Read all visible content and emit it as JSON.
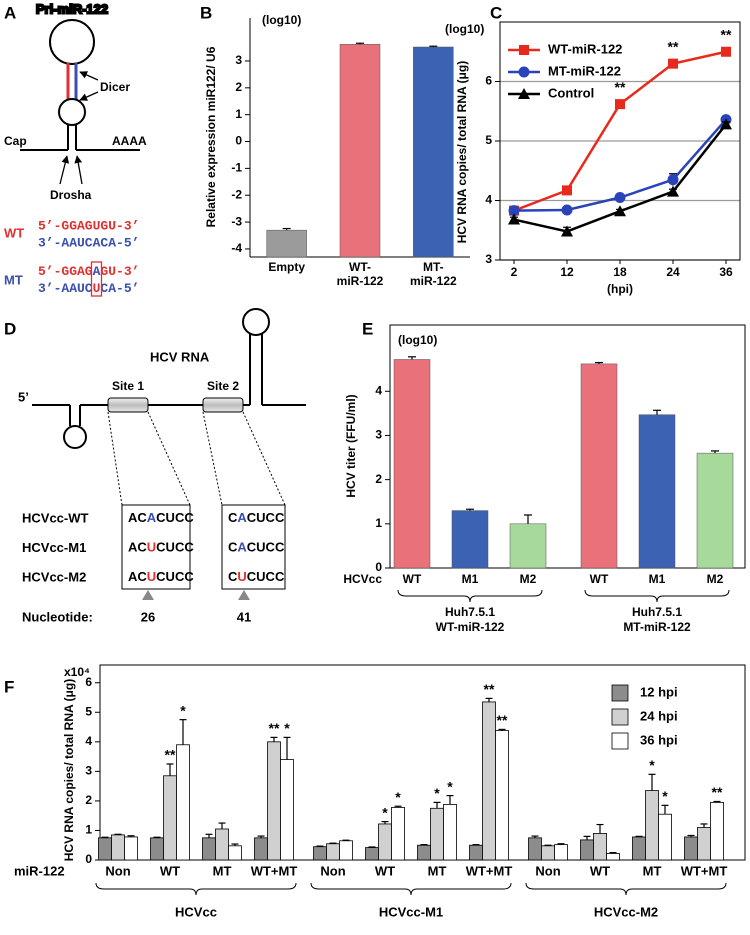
{
  "panel_labels": [
    "A",
    "B",
    "C",
    "D",
    "E",
    "F"
  ],
  "diagram_a": {
    "title": "Pri-miR-122",
    "dicer": "Dicer",
    "drosha": "Drosha",
    "cap": "Cap",
    "poly_a": "AAAA",
    "wt": {
      "label": "WT",
      "top": "5’-GGAGUGU-3’",
      "bottom": "3’-AAUCACA-5’"
    },
    "mt": {
      "label": "MT",
      "top": [
        "5’-GGAG",
        "A",
        "GU-3’"
      ],
      "bottom": [
        "3’-AAUC",
        "U",
        "CA-5’"
      ]
    }
  },
  "diagram_d": {
    "rna": "HCV RNA",
    "five_prime": "5’",
    "site1": "Site 1",
    "site2": "Site 2",
    "rows": [
      {
        "name": "HCVcc-WT",
        "site1": [
          "AC",
          "A",
          "CUCC"
        ],
        "site2": [
          "C",
          "A",
          "CUCC"
        ]
      },
      {
        "name": "HCVcc-M1",
        "site1": [
          "AC",
          "U",
          "CUCC"
        ],
        "site2": [
          "C",
          "A",
          "CUCC"
        ]
      },
      {
        "name": "HCVcc-M2",
        "site1": [
          "AC",
          "U",
          "CUCC"
        ],
        "site2": [
          "C",
          "U",
          "CUCC"
        ]
      }
    ],
    "nucleotide_label": "Nucleotide:",
    "positions": [
      26,
      41
    ]
  },
  "chart_data": [
    {
      "type": "bar",
      "y_label": "Relative expression miR122/ U6",
      "y_unit": "(log10)",
      "categories": [
        [
          "Empty"
        ],
        [
          "WT-",
          "miR-122"
        ],
        [
          "MT-",
          "miR-122"
        ]
      ],
      "values": [
        -3.3,
        3.62,
        3.52
      ],
      "errors": [
        0.06,
        0.04,
        0.03
      ],
      "colors": [
        "#9b9b9b",
        "#e9717a",
        "#3b62b3"
      ],
      "ylim": [
        -4.3,
        4.6
      ],
      "yticks": [
        3,
        2,
        1,
        0,
        -1,
        -2,
        -3,
        -4
      ]
    },
    {
      "type": "line",
      "y_label": "HCV RNA copies/ total RNA (μg)",
      "y_unit": "(log10)",
      "x_label": "(hpi)",
      "categories": [
        2,
        12,
        18,
        24,
        36
      ],
      "series": [
        {
          "name": "WT-miR-122",
          "color": "#e8291c",
          "marker": "square",
          "values": [
            3.83,
            4.17,
            5.62,
            6.3,
            6.5
          ],
          "errors": [
            0.03,
            0.03,
            0.03,
            0.03,
            0.03
          ]
        },
        {
          "name": "MT-miR-122",
          "color": "#2b43b8",
          "marker": "circle",
          "values": [
            3.83,
            3.84,
            4.05,
            4.35,
            5.36
          ],
          "errors": [
            0.03,
            0.02,
            0.03,
            0.1,
            0.03
          ]
        },
        {
          "name": "Control",
          "color": "#000000",
          "marker": "triangle",
          "values": [
            3.68,
            3.48,
            3.82,
            4.15,
            5.28
          ],
          "errors": [
            0.04,
            0.07,
            0.03,
            0.04,
            0.04
          ]
        }
      ],
      "annotations": [
        null,
        null,
        "**",
        "**",
        "**"
      ],
      "ylim": [
        3,
        7
      ],
      "yticks": [
        3,
        4,
        5,
        6
      ],
      "grid": true,
      "legend": "upper-left"
    },
    {
      "type": "bar",
      "y_label": "HCV titer (FFU/ml)",
      "y_unit": "(log10)",
      "x_prefix": "HCVcc",
      "categories": [
        "WT",
        "M1",
        "M2",
        "WT",
        "M1",
        "M2"
      ],
      "groups": [
        [
          "Huh7.5.1",
          "WT-miR-122"
        ],
        [
          "Huh7.5.1",
          "MT-miR-122"
        ]
      ],
      "values": [
        4.72,
        1.3,
        1.0,
        4.62,
        3.47,
        2.6
      ],
      "errors": [
        0.06,
        0.03,
        0.2,
        0.03,
        0.1,
        0.05
      ],
      "colors": [
        "#e9717a",
        "#3b62b3",
        "#a6d99a",
        "#e9717a",
        "#3b62b3",
        "#a6d99a"
      ],
      "ylim": [
        0,
        5.5
      ],
      "yticks": [
        0,
        1,
        2,
        3,
        4
      ]
    },
    {
      "type": "grouped_bar",
      "y_label": "HCV RNA copies/ total RNA (μg)",
      "y_multiplier": "x10⁴",
      "x_prefix": "miR-122",
      "categories": [
        "Non",
        "WT",
        "MT",
        "WT+MT",
        "Non",
        "WT",
        "MT",
        "WT+MT",
        "Non",
        "WT",
        "MT",
        "WT+MT"
      ],
      "groups": [
        "HCVcc",
        "HCVcc-M1",
        "HCVcc-M2"
      ],
      "series": [
        {
          "name": "12 hpi",
          "color": "#8c8c8c",
          "values": [
            0.75,
            0.75,
            0.75,
            0.75,
            0.45,
            0.42,
            0.5,
            0.5,
            0.75,
            0.68,
            0.78,
            0.78
          ],
          "errors": [
            0.02,
            0.02,
            0.12,
            0.06,
            0.02,
            0.02,
            0.02,
            0.02,
            0.06,
            0.12,
            0.02,
            0.05
          ],
          "significance": [
            null,
            null,
            null,
            null,
            null,
            null,
            null,
            null,
            null,
            null,
            null,
            null
          ]
        },
        {
          "name": "24 hpi",
          "color": "#d0d0d0",
          "values": [
            0.85,
            2.85,
            1.05,
            4.0,
            0.55,
            1.22,
            1.75,
            5.35,
            0.48,
            0.9,
            2.35,
            1.1
          ],
          "errors": [
            0.02,
            0.4,
            0.2,
            0.15,
            0.02,
            0.08,
            0.2,
            0.12,
            0.02,
            0.3,
            0.55,
            0.12
          ],
          "significance": [
            null,
            "**",
            null,
            "**",
            null,
            "*",
            "*",
            "**",
            null,
            null,
            "*",
            null
          ]
        },
        {
          "name": "36 hpi",
          "color": "#ffffff",
          "values": [
            0.78,
            3.9,
            0.48,
            3.4,
            0.65,
            1.78,
            1.88,
            4.38,
            0.52,
            0.22,
            1.55,
            1.95
          ],
          "errors": [
            0.04,
            0.85,
            0.06,
            0.75,
            0.02,
            0.04,
            0.3,
            0.04,
            0.03,
            0.03,
            0.3,
            0.03
          ],
          "significance": [
            null,
            "*",
            null,
            "*",
            null,
            "*",
            "*",
            "**",
            null,
            null,
            "*",
            "**"
          ]
        }
      ],
      "ylim": [
        0,
        6.6
      ],
      "yticks": [
        0,
        1,
        2,
        3,
        4,
        5,
        6
      ],
      "legend": "upper-right"
    }
  ]
}
